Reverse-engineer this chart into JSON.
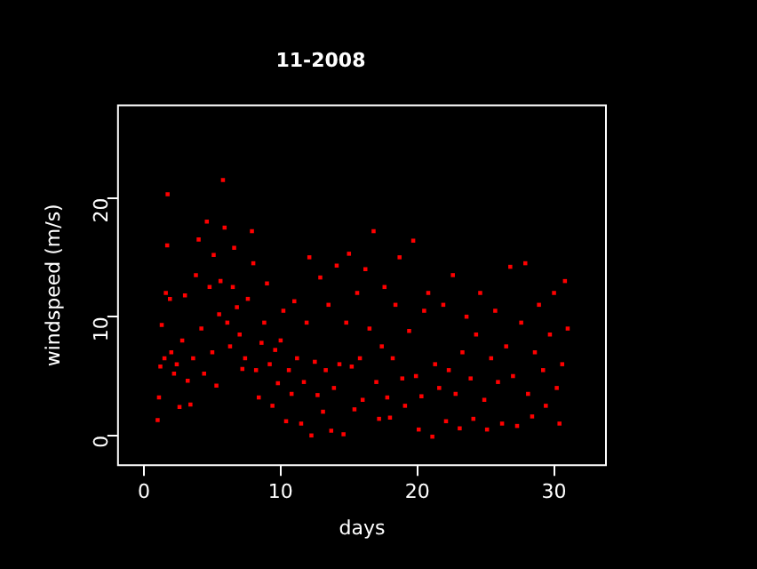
{
  "chart_data": {
    "type": "scatter",
    "title": "11-2008",
    "xlabel": "days",
    "ylabel": "windspeed (m/s)",
    "color": "#ff0000",
    "marker": "square",
    "grid": false,
    "xlim": [
      -1.9,
      33.8
    ],
    "ylim": [
      -2.5,
      27.8
    ],
    "xticks": [
      0,
      10,
      20,
      30
    ],
    "yticks": [
      0,
      10,
      20
    ],
    "x": [
      1.0,
      1.1,
      1.2,
      1.3,
      1.5,
      1.6,
      1.7,
      1.73,
      1.9,
      2.0,
      2.2,
      2.4,
      2.6,
      2.8,
      3.0,
      3.2,
      3.4,
      3.6,
      3.8,
      4.0,
      4.2,
      4.4,
      4.6,
      4.8,
      5.0,
      5.1,
      5.3,
      5.5,
      5.6,
      5.78,
      5.9,
      6.1,
      6.3,
      6.5,
      6.6,
      6.8,
      7.0,
      7.2,
      7.4,
      7.6,
      7.9,
      8.0,
      8.2,
      8.4,
      8.6,
      8.8,
      9.0,
      9.2,
      9.4,
      9.6,
      9.8,
      10.0,
      10.2,
      10.4,
      10.6,
      10.8,
      11.0,
      11.2,
      11.5,
      11.7,
      11.9,
      12.1,
      12.25,
      12.5,
      12.7,
      12.9,
      13.1,
      13.3,
      13.5,
      13.7,
      13.9,
      14.1,
      14.3,
      14.6,
      14.8,
      15.0,
      15.2,
      15.4,
      15.6,
      15.8,
      16.0,
      16.2,
      16.5,
      16.8,
      17.0,
      17.2,
      17.4,
      17.6,
      17.8,
      18.0,
      18.2,
      18.4,
      18.7,
      18.9,
      19.1,
      19.4,
      19.7,
      19.9,
      20.1,
      20.3,
      20.5,
      20.8,
      21.1,
      21.3,
      21.6,
      21.9,
      22.1,
      22.3,
      22.6,
      22.8,
      23.1,
      23.3,
      23.6,
      23.9,
      24.1,
      24.3,
      24.6,
      24.9,
      25.1,
      25.4,
      25.7,
      25.9,
      26.2,
      26.5,
      26.8,
      27.0,
      27.3,
      27.6,
      27.9,
      28.1,
      28.4,
      28.6,
      28.9,
      29.2,
      29.4,
      29.7,
      30.0,
      30.2,
      30.4,
      30.6,
      30.8,
      31.0
    ],
    "values": [
      1.3,
      3.2,
      5.8,
      9.3,
      6.5,
      12.0,
      16.0,
      20.3,
      11.5,
      7.0,
      5.2,
      6.0,
      2.4,
      8.0,
      11.8,
      4.6,
      2.6,
      6.5,
      13.5,
      16.5,
      9.0,
      5.2,
      18.0,
      12.5,
      7.0,
      15.2,
      4.2,
      10.2,
      13.0,
      21.5,
      17.5,
      9.5,
      7.5,
      12.5,
      15.8,
      10.8,
      8.5,
      5.6,
      6.5,
      11.5,
      17.2,
      14.5,
      5.5,
      3.2,
      7.8,
      9.5,
      12.8,
      6.0,
      2.5,
      7.2,
      4.4,
      8.0,
      10.5,
      1.2,
      5.5,
      3.5,
      11.3,
      6.5,
      1.0,
      4.5,
      9.5,
      15.0,
      0.0,
      6.2,
      3.4,
      13.3,
      2.0,
      5.5,
      11.0,
      0.4,
      4.0,
      14.3,
      6.0,
      0.1,
      9.5,
      15.3,
      5.8,
      2.2,
      12.0,
      6.5,
      3.0,
      14.0,
      9.0,
      17.2,
      4.5,
      1.4,
      7.5,
      12.5,
      3.2,
      1.5,
      6.5,
      11.0,
      15.0,
      4.8,
      2.5,
      8.8,
      16.4,
      5.0,
      0.5,
      3.3,
      10.5,
      12.0,
      -0.1,
      6.0,
      4.0,
      11.0,
      1.2,
      5.5,
      13.5,
      3.5,
      0.6,
      7.0,
      10.0,
      4.8,
      1.4,
      8.5,
      12.0,
      3.0,
      0.5,
      6.5,
      10.5,
      4.5,
      1.0,
      7.5,
      14.2,
      5.0,
      0.8,
      9.5,
      14.5,
      3.5,
      1.6,
      7.0,
      11.0,
      5.5,
      2.5,
      8.5,
      12.0,
      4.0,
      1.0,
      6.0,
      13.0,
      9.0
    ]
  }
}
